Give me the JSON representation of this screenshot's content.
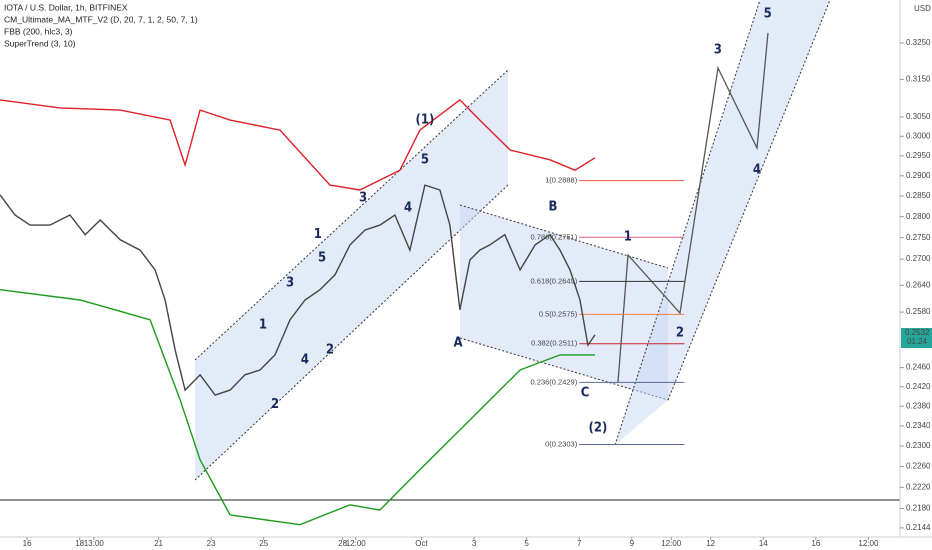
{
  "header": {
    "title": "IOTA / U.S. Dollar, 1h, BITFINEX",
    "indicators": [
      "CM_Ultimate_MA_MTF_V2 (D, 20, 7, 1, 2, 50, 7, 1)",
      "FBB (200, hlc3, 3)",
      "SuperTrend (3, 10)"
    ],
    "currency": "USD"
  },
  "chart_data": {
    "type": "line",
    "log": true,
    "xlim": [
      -1.03,
      33.2
    ],
    "ylim": [
      0.2131,
      0.3372
    ],
    "xticks": [
      {
        "value": 0,
        "label": "16"
      },
      {
        "value": 2,
        "label": "18"
      },
      {
        "value": 2.54,
        "label": "13:00"
      },
      {
        "value": 5,
        "label": "21"
      },
      {
        "value": 7,
        "label": "23"
      },
      {
        "value": 9,
        "label": "25"
      },
      {
        "value": 12,
        "label": "28"
      },
      {
        "value": 12.5,
        "label": "12:00"
      },
      {
        "value": 15,
        "label": "Oct"
      },
      {
        "value": 17,
        "label": "3"
      },
      {
        "value": 19,
        "label": "5"
      },
      {
        "value": 21,
        "label": "7"
      },
      {
        "value": 23,
        "label": "9"
      },
      {
        "value": 24.5,
        "label": "12:00"
      },
      {
        "value": 26,
        "label": "12"
      },
      {
        "value": 28,
        "label": "14"
      },
      {
        "value": 30,
        "label": "16"
      },
      {
        "value": 32,
        "label": "12:00"
      }
    ],
    "yticks": [
      {
        "value": 0.325,
        "label": "0.3250"
      },
      {
        "value": 0.315,
        "label": "0.3150"
      },
      {
        "value": 0.305,
        "label": "0.3050"
      },
      {
        "value": 0.3,
        "label": "0.3000"
      },
      {
        "value": 0.295,
        "label": "0.2950"
      },
      {
        "value": 0.29,
        "label": "0.2900"
      },
      {
        "value": 0.285,
        "label": "0.2850"
      },
      {
        "value": 0.28,
        "label": "0.2800"
      },
      {
        "value": 0.275,
        "label": "0.2750"
      },
      {
        "value": 0.27,
        "label": "0.2700"
      },
      {
        "value": 0.264,
        "label": "0.2640"
      },
      {
        "value": 0.258,
        "label": "0.2580"
      },
      {
        "value": 0.246,
        "label": "0.2460"
      },
      {
        "value": 0.242,
        "label": "0.2420"
      },
      {
        "value": 0.238,
        "label": "0.2380"
      },
      {
        "value": 0.234,
        "label": "0.2340"
      },
      {
        "value": 0.23,
        "label": "0.2300"
      },
      {
        "value": 0.226,
        "label": "0.2260"
      },
      {
        "value": 0.222,
        "label": "0.2220"
      },
      {
        "value": 0.218,
        "label": "0.2180"
      },
      {
        "value": 0.2144,
        "label": "0.2144"
      }
    ],
    "series": [
      {
        "color": "#444444",
        "x": [
          -1.03,
          -0.46,
          0.11,
          0.87,
          1.63,
          2.21,
          2.78,
          3.54,
          4.3,
          4.87,
          5.25,
          5.63,
          6.01,
          6.58,
          7.15,
          7.72,
          8.29,
          8.86,
          9.43,
          10.0,
          10.57,
          11.14,
          11.71,
          12.28,
          12.85,
          13.42,
          13.99,
          14.56,
          15.13,
          15.7,
          16.08,
          16.46,
          16.84,
          17.22,
          17.6,
          18.17,
          18.75,
          19.32,
          19.89,
          20.27,
          20.65,
          21.03,
          21.33,
          21.6
        ],
        "values": [
          0.2853,
          0.2804,
          0.278,
          0.278,
          0.2804,
          0.2757,
          0.2792,
          0.2745,
          0.2721,
          0.2675,
          0.2607,
          0.2498,
          0.2413,
          0.2445,
          0.2403,
          0.2413,
          0.2445,
          0.2455,
          0.2487,
          0.2563,
          0.2607,
          0.263,
          0.2664,
          0.2733,
          0.2768,
          0.278,
          0.2804,
          0.2721,
          0.2877,
          0.2865,
          0.278,
          0.2585,
          0.2698,
          0.2721,
          0.2733,
          0.2757,
          0.2675,
          0.2733,
          0.2757,
          0.2721,
          0.2675,
          0.2607,
          0.2508,
          0.253
        ]
      },
      {
        "color": "#e0202a",
        "x": [
          -1.03,
          1.25,
          3.54,
          5.44,
          6.01,
          6.58,
          7.72,
          9.62,
          11.52,
          12.66,
          14.18,
          14.94,
          16.46,
          17.22,
          18.37,
          19.89,
          20.84,
          21.6
        ],
        "values": [
          0.3095,
          0.3074,
          0.3068,
          0.3042,
          0.2927,
          0.3068,
          0.3042,
          0.3016,
          0.2877,
          0.2865,
          0.2914,
          0.3016,
          0.3095,
          0.3042,
          0.2965,
          0.294,
          0.2914,
          0.2945
        ]
      },
      {
        "color": "#1a9c1a",
        "x": [
          -1.03,
          2.02,
          4.68,
          5.82,
          6.58,
          7.72,
          10.38,
          12.28,
          13.42,
          14.94,
          16.84,
          18.75,
          20.27,
          21.6
        ],
        "values": [
          0.263,
          0.2607,
          0.2563,
          0.2393,
          0.2273,
          0.2168,
          0.215,
          0.2187,
          0.2177,
          0.2254,
          0.2352,
          0.2455,
          0.2487,
          0.2487
        ]
      }
    ],
    "fib_levels": [
      {
        "label": "1(0.2888)",
        "value": 0.2888,
        "color": "#e05a3a"
      },
      {
        "label": "0.786(0.2751)",
        "value": 0.2751,
        "color": "#e05a7a"
      },
      {
        "label": "0.618(0.2649)",
        "value": 0.2649,
        "color": "#333333"
      },
      {
        "label": "0.5(0.2575)",
        "value": 0.2575,
        "color": "#f08040"
      },
      {
        "label": "0.382(0.2511)",
        "value": 0.2511,
        "color": "#d0202a"
      },
      {
        "label": "0.236(0.2429)",
        "value": 0.2429,
        "color": "#5a6a9a"
      },
      {
        "label": "0(0.2303)",
        "value": 0.2303,
        "color": "#5a6a9a"
      }
    ],
    "annotations": [
      {
        "text": "(1)",
        "x": 15.13,
        "y": 0.3042
      },
      {
        "text": "5",
        "x": 15.13,
        "y": 0.294
      },
      {
        "text": "3",
        "x": 12.78,
        "y": 0.2845
      },
      {
        "text": "1",
        "x": 11.06,
        "y": 0.2757
      },
      {
        "text": "5",
        "x": 11.22,
        "y": 0.2703
      },
      {
        "text": "3",
        "x": 10.0,
        "y": 0.2645
      },
      {
        "text": "4",
        "x": 14.49,
        "y": 0.2821
      },
      {
        "text": "1",
        "x": 8.97,
        "y": 0.2552
      },
      {
        "text": "4",
        "x": 10.57,
        "y": 0.2476
      },
      {
        "text": "2",
        "x": 11.52,
        "y": 0.2498
      },
      {
        "text": "2",
        "x": 9.43,
        "y": 0.2383
      },
      {
        "text": "B",
        "x": 20.0,
        "y": 0.2823
      },
      {
        "text": "A",
        "x": 16.39,
        "y": 0.2513
      },
      {
        "text": "C",
        "x": 21.22,
        "y": 0.2407
      },
      {
        "text": "1",
        "x": 22.85,
        "y": 0.2752
      },
      {
        "text": "2",
        "x": 24.83,
        "y": 0.2534
      },
      {
        "text": "3",
        "x": 26.27,
        "y": 0.323
      },
      {
        "text": "4",
        "x": 27.76,
        "y": 0.2914
      },
      {
        "text": "5",
        "x": 28.17,
        "y": 0.3332
      },
      {
        "text": "(2)",
        "x": 21.71,
        "y": 0.2336
      }
    ],
    "last_price": {
      "value": 0.2532,
      "label": "0.2532"
    },
    "countdown": "01:24"
  }
}
